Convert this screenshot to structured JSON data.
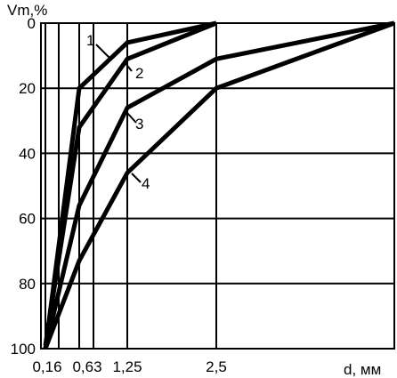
{
  "chart_data": {
    "type": "line",
    "title": "",
    "ylabel": "Vm,%",
    "xlabel": "d, мм",
    "x_ticks": [
      "0,16",
      "0,63",
      "1,25",
      "2,5"
    ],
    "y_ticks": [
      "0",
      "20",
      "40",
      "60",
      "80",
      "100"
    ],
    "ylim": [
      0,
      100
    ],
    "y_inverted": true,
    "grid": true,
    "series": [
      {
        "name": "1",
        "x": [
          "0,16",
          "0,63",
          "1,25",
          "2,5"
        ],
        "values": [
          100,
          20,
          6,
          0
        ]
      },
      {
        "name": "2",
        "x": [
          "0,16",
          "0,63",
          "1,25",
          "2,5"
        ],
        "values": [
          99,
          32,
          11,
          0
        ]
      },
      {
        "name": "3",
        "x": [
          "0,16",
          "0,63",
          "1,25",
          "2,5",
          "5"
        ],
        "values": [
          100,
          56,
          26,
          11,
          0
        ]
      },
      {
        "name": "4",
        "x": [
          "0,16",
          "0,63",
          "1,25",
          "2,5",
          "5"
        ],
        "values": [
          100,
          73,
          46,
          20,
          0
        ]
      }
    ]
  }
}
